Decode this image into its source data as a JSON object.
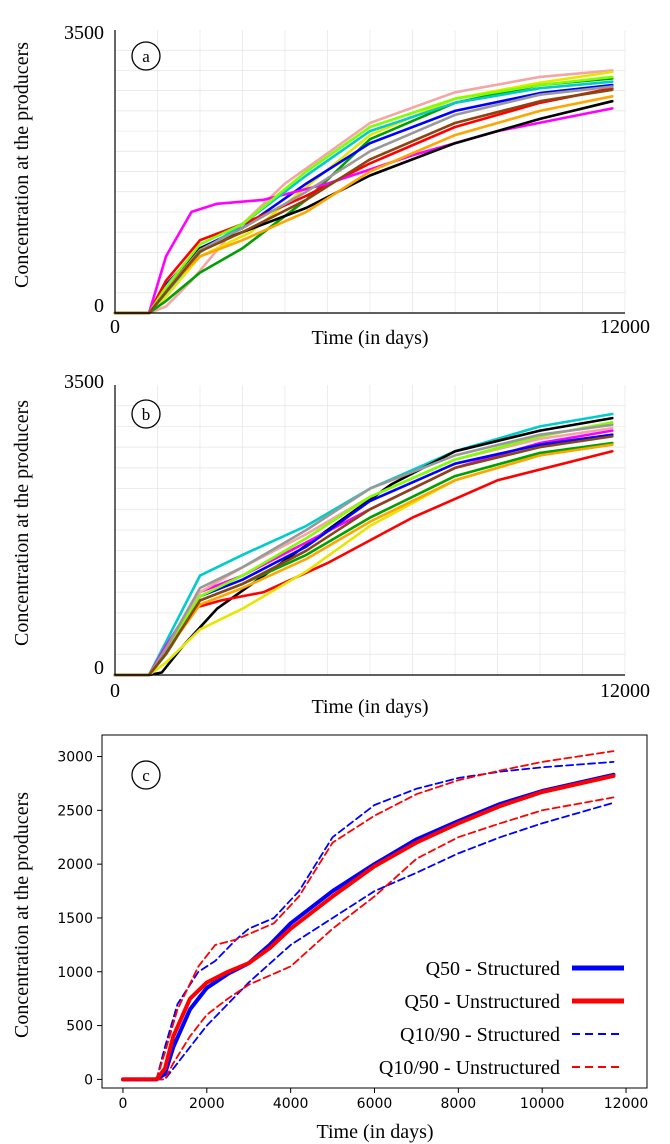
{
  "chart_data": [
    {
      "panel_label": "a",
      "type": "line",
      "xlabel": "Time (in days)",
      "ylabel": "Concentration at the producers",
      "xlim": [
        0,
        12000
      ],
      "ylim": [
        0,
        3500
      ],
      "x_tick_labels": [
        "0",
        "12000"
      ],
      "y_tick_labels": [
        "0",
        "3500"
      ],
      "grid": true,
      "series": [
        {
          "color": "#f3a6a6",
          "x": [
            0,
            800,
            1200,
            1800,
            2600,
            4000,
            6000,
            8000,
            10000,
            11700
          ],
          "y": [
            0,
            0,
            80,
            400,
            900,
            1600,
            2350,
            2730,
            2920,
            3000
          ]
        },
        {
          "color": "#e6e600",
          "x": [
            0,
            800,
            1200,
            2000,
            3200,
            4600,
            6000,
            8000,
            10000,
            11700
          ],
          "y": [
            0,
            0,
            200,
            700,
            1000,
            1600,
            2200,
            2650,
            2850,
            2980
          ]
        },
        {
          "color": "#00a000",
          "x": [
            0,
            800,
            1200,
            2000,
            3000,
            4500,
            6000,
            8000,
            10000,
            11700
          ],
          "y": [
            0,
            0,
            150,
            500,
            800,
            1400,
            2150,
            2600,
            2820,
            2900
          ]
        },
        {
          "color": "#0000ff",
          "x": [
            0,
            800,
            1200,
            2000,
            3000,
            4500,
            6000,
            8000,
            10000,
            11700
          ],
          "y": [
            0,
            0,
            350,
            800,
            1050,
            1600,
            2100,
            2500,
            2720,
            2820
          ]
        },
        {
          "color": "#ff0000",
          "x": [
            0,
            800,
            1200,
            2000,
            3000,
            4500,
            6000,
            8000,
            10000,
            11700
          ],
          "y": [
            0,
            0,
            400,
            900,
            1100,
            1450,
            1850,
            2300,
            2600,
            2780
          ]
        },
        {
          "color": "#ff00ff",
          "x": [
            0,
            800,
            1200,
            1800,
            2400,
            3500,
            5000,
            7000,
            9000,
            11700
          ],
          "y": [
            0,
            0,
            700,
            1250,
            1350,
            1400,
            1600,
            1950,
            2250,
            2530
          ]
        },
        {
          "color": "#000000",
          "x": [
            0,
            800,
            1200,
            2000,
            3000,
            4500,
            6000,
            8000,
            10000,
            11700
          ],
          "y": [
            0,
            0,
            300,
            800,
            1000,
            1300,
            1700,
            2100,
            2400,
            2620
          ]
        },
        {
          "color": "#00cccc",
          "x": [
            0,
            800,
            1200,
            2000,
            3000,
            4500,
            6000,
            8000,
            10000,
            11700
          ],
          "y": [
            0,
            0,
            250,
            750,
            1100,
            1700,
            2250,
            2600,
            2780,
            2860
          ]
        },
        {
          "color": "#ffa500",
          "x": [
            0,
            800,
            1200,
            2000,
            3000,
            4500,
            6000,
            8000,
            10000,
            11700
          ],
          "y": [
            0,
            0,
            300,
            700,
            900,
            1250,
            1750,
            2200,
            2500,
            2680
          ]
        },
        {
          "color": "#999999",
          "x": [
            0,
            800,
            1200,
            2000,
            3000,
            4500,
            6000,
            8000,
            10000,
            11700
          ],
          "y": [
            0,
            0,
            280,
            780,
            1050,
            1500,
            2000,
            2450,
            2700,
            2800
          ]
        },
        {
          "color": "#7fff00",
          "x": [
            0,
            800,
            1200,
            2000,
            3000,
            4500,
            6000,
            8000,
            10000,
            11700
          ],
          "y": [
            0,
            0,
            320,
            850,
            1100,
            1750,
            2300,
            2650,
            2820,
            2920
          ]
        },
        {
          "color": "#8b4513",
          "x": [
            0,
            800,
            1200,
            2000,
            3000,
            4500,
            6000,
            8000,
            10000,
            11700
          ],
          "y": [
            0,
            0,
            260,
            760,
            1000,
            1400,
            1900,
            2350,
            2620,
            2760
          ]
        }
      ]
    },
    {
      "panel_label": "b",
      "type": "line",
      "xlabel": "Time (in days)",
      "ylabel": "Concentration at the producers",
      "xlim": [
        0,
        12000
      ],
      "ylim": [
        0,
        3500
      ],
      "x_tick_labels": [
        "0",
        "12000"
      ],
      "y_tick_labels": [
        "0",
        "3500"
      ],
      "grid": true,
      "series": [
        {
          "color": "#00cccc",
          "x": [
            0,
            800,
            1200,
            2000,
            3000,
            4500,
            6000,
            8000,
            10000,
            11700
          ],
          "y": [
            0,
            0,
            400,
            1200,
            1450,
            1800,
            2250,
            2700,
            3000,
            3150
          ]
        },
        {
          "color": "#000000",
          "x": [
            0,
            800,
            1100,
            1600,
            2400,
            3500,
            5000,
            6500,
            8000,
            10000,
            11700
          ],
          "y": [
            0,
            0,
            30,
            350,
            800,
            1200,
            1750,
            2300,
            2700,
            2950,
            3100
          ]
        },
        {
          "color": "#ff0000",
          "x": [
            0,
            800,
            1200,
            1800,
            2500,
            3500,
            5000,
            7000,
            9000,
            11700
          ],
          "y": [
            0,
            0,
            350,
            800,
            900,
            1000,
            1350,
            1900,
            2350,
            2700
          ]
        },
        {
          "color": "#e6e600",
          "x": [
            0,
            800,
            1200,
            2000,
            3000,
            4500,
            6000,
            8000,
            10000,
            11700
          ],
          "y": [
            0,
            0,
            150,
            550,
            800,
            1250,
            1800,
            2350,
            2650,
            2800
          ]
        },
        {
          "color": "#ff00ff",
          "x": [
            0,
            800,
            1200,
            2000,
            3000,
            4500,
            6000,
            8000,
            10000,
            11700
          ],
          "y": [
            0,
            0,
            350,
            1000,
            1200,
            1600,
            2000,
            2500,
            2800,
            2950
          ]
        },
        {
          "color": "#0000ff",
          "x": [
            0,
            800,
            1200,
            2000,
            3000,
            4500,
            6000,
            8000,
            10000,
            11700
          ],
          "y": [
            0,
            0,
            300,
            950,
            1150,
            1550,
            2100,
            2550,
            2780,
            2900
          ]
        },
        {
          "color": "#00a000",
          "x": [
            0,
            800,
            1200,
            2000,
            3000,
            4500,
            6000,
            8000,
            10000,
            11700
          ],
          "y": [
            0,
            0,
            250,
            900,
            1100,
            1450,
            1900,
            2400,
            2680,
            2800
          ]
        },
        {
          "color": "#f3a6a6",
          "x": [
            0,
            800,
            1200,
            2000,
            3000,
            4500,
            6000,
            8000,
            10000,
            11700
          ],
          "y": [
            0,
            0,
            300,
            1000,
            1300,
            1700,
            2150,
            2600,
            2850,
            2980
          ]
        },
        {
          "color": "#ffa500",
          "x": [
            0,
            800,
            1200,
            2000,
            3000,
            4500,
            6000,
            8000,
            10000,
            11700
          ],
          "y": [
            0,
            0,
            280,
            850,
            1050,
            1400,
            1850,
            2350,
            2650,
            2780
          ]
        },
        {
          "color": "#7fff00",
          "x": [
            0,
            800,
            1200,
            2000,
            3000,
            4500,
            6000,
            8000,
            10000,
            11700
          ],
          "y": [
            0,
            0,
            300,
            950,
            1200,
            1650,
            2150,
            2600,
            2880,
            3050
          ]
        },
        {
          "color": "#999999",
          "x": [
            0,
            800,
            1200,
            2000,
            3000,
            4500,
            6000,
            8000,
            10000,
            11700
          ],
          "y": [
            0,
            0,
            320,
            1050,
            1300,
            1750,
            2250,
            2650,
            2900,
            3020
          ]
        },
        {
          "color": "#8b4513",
          "x": [
            0,
            800,
            1200,
            2000,
            3000,
            4500,
            6000,
            8000,
            10000,
            11700
          ],
          "y": [
            0,
            0,
            260,
            900,
            1100,
            1500,
            2000,
            2500,
            2750,
            2880
          ]
        }
      ]
    },
    {
      "panel_label": "c",
      "type": "line",
      "xlabel": "Time (in days)",
      "ylabel": "Concentration at the producers",
      "xlim": [
        -500,
        12500
      ],
      "ylim": [
        -80,
        3200
      ],
      "x_ticks": [
        0,
        2000,
        4000,
        6000,
        8000,
        10000,
        12000
      ],
      "y_ticks": [
        0,
        500,
        1000,
        1500,
        2000,
        2500,
        3000
      ],
      "grid": false,
      "legend": "bottom-right",
      "series": [
        {
          "name": "Q50 - Structured",
          "color": "#0000ff",
          "style": "solid",
          "x": [
            0,
            800,
            1000,
            1200,
            1600,
            2000,
            2500,
            3000,
            3500,
            4000,
            5000,
            6000,
            7000,
            8000,
            9000,
            10000,
            11700
          ],
          "y": [
            0,
            0,
            50,
            300,
            650,
            850,
            980,
            1080,
            1250,
            1450,
            1750,
            2000,
            2230,
            2400,
            2560,
            2680,
            2830
          ]
        },
        {
          "name": "Q50 - Unstructured",
          "color": "#ff0000",
          "style": "solid",
          "x": [
            0,
            800,
            1000,
            1200,
            1600,
            2000,
            2500,
            3000,
            3500,
            4000,
            5000,
            6000,
            7000,
            8000,
            9000,
            10000,
            11700
          ],
          "y": [
            0,
            0,
            100,
            400,
            750,
            900,
            1000,
            1080,
            1220,
            1400,
            1700,
            1980,
            2200,
            2380,
            2540,
            2670,
            2820
          ]
        },
        {
          "name": "Q10/90 - Structured",
          "color": "#0000ff",
          "style": "dashed",
          "x": [
            0,
            800,
            1000,
            1300,
            1800,
            2200,
            2700,
            3000,
            3600,
            4200,
            5000,
            6000,
            7000,
            8000,
            9000,
            10000,
            11700
          ],
          "y": [
            0,
            0,
            300,
            700,
            1000,
            1100,
            1300,
            1400,
            1500,
            1750,
            2250,
            2550,
            2700,
            2800,
            2860,
            2900,
            2950
          ]
        },
        {
          "name": "Q10/90 - Unstructured",
          "color": "#ff0000",
          "style": "dashed",
          "x": [
            0,
            800,
            1000,
            1300,
            1800,
            2200,
            2700,
            3000,
            3600,
            4200,
            5000,
            6000,
            7000,
            8000,
            9000,
            10000,
            11700
          ],
          "y": [
            0,
            0,
            250,
            650,
            1050,
            1250,
            1300,
            1350,
            1450,
            1700,
            2200,
            2450,
            2650,
            2780,
            2870,
            2950,
            3050
          ]
        },
        {
          "name": "Q10/90 - Structured",
          "color": "#0000ff",
          "style": "dashed",
          "show_in_legend": false,
          "x": [
            0,
            1000,
            1200,
            1600,
            2000,
            2500,
            3000,
            4000,
            5000,
            6000,
            7000,
            8000,
            9000,
            10000,
            11700
          ],
          "y": [
            0,
            0,
            100,
            300,
            500,
            700,
            900,
            1250,
            1500,
            1750,
            1920,
            2100,
            2250,
            2380,
            2570
          ]
        },
        {
          "name": "Q10/90 - Unstructured",
          "color": "#ff0000",
          "style": "dashed",
          "show_in_legend": false,
          "x": [
            0,
            1000,
            1200,
            1600,
            2000,
            2500,
            3000,
            4000,
            5000,
            6000,
            7000,
            8000,
            9000,
            10000,
            11700
          ],
          "y": [
            0,
            0,
            150,
            400,
            600,
            750,
            880,
            1050,
            1400,
            1700,
            2050,
            2250,
            2380,
            2500,
            2620
          ]
        }
      ]
    }
  ]
}
